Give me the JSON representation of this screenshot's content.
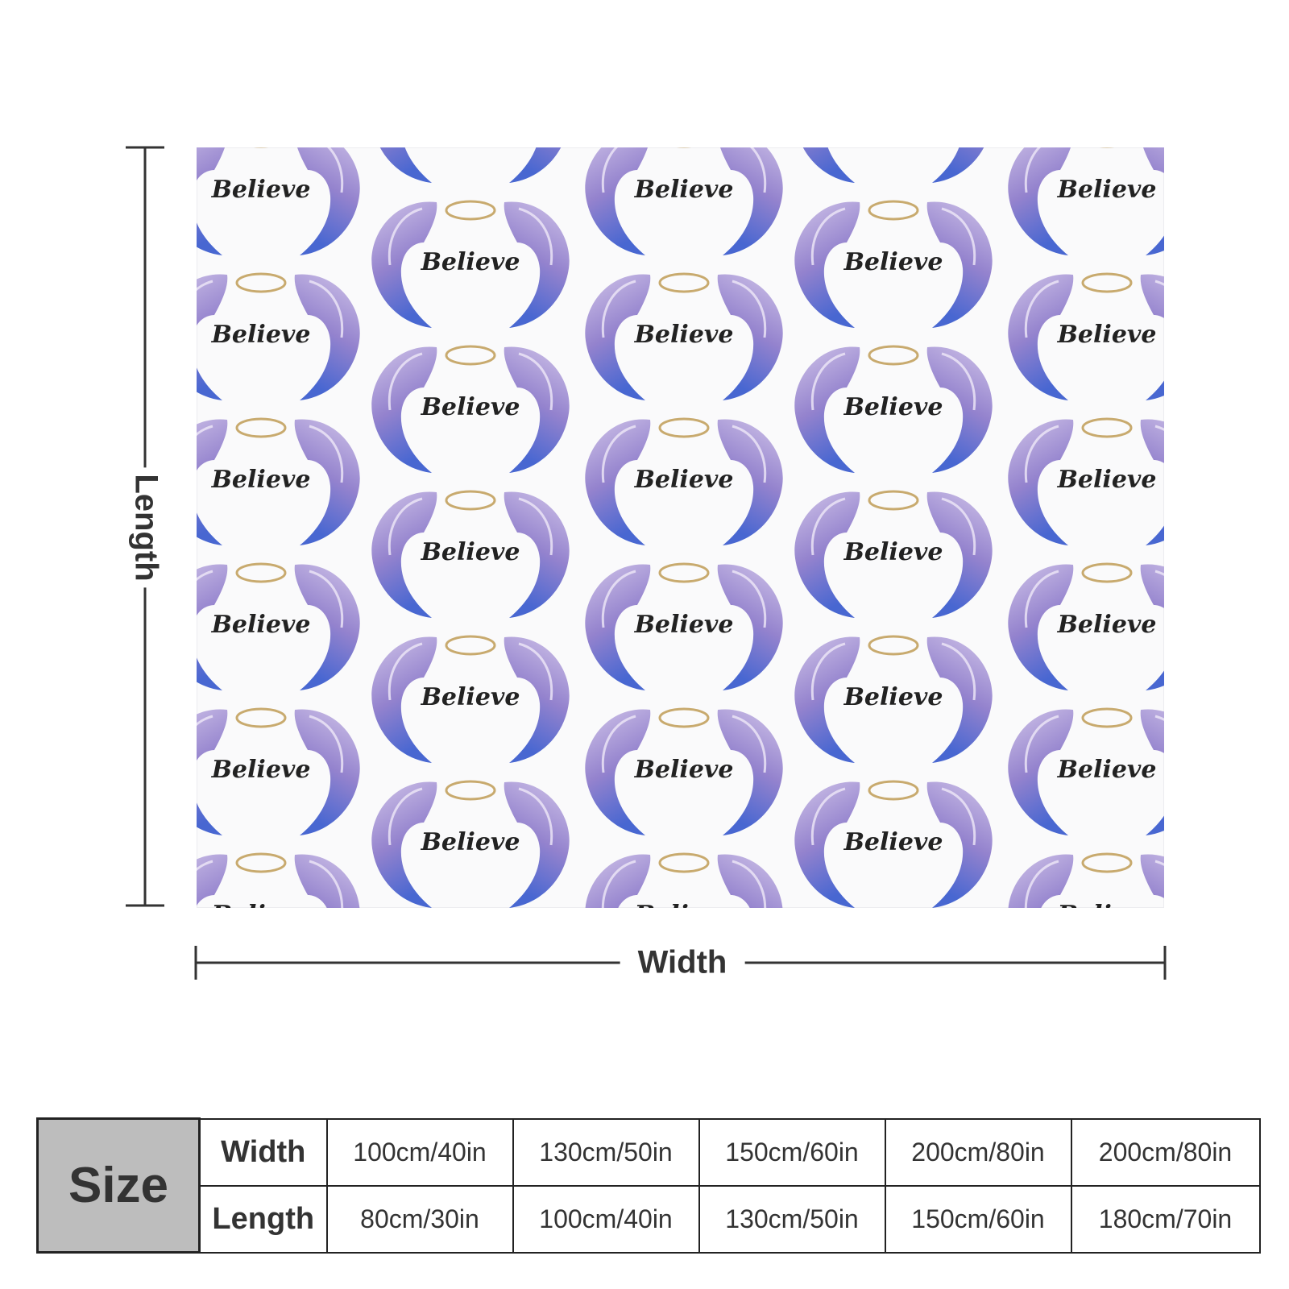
{
  "product": {
    "pattern_text": "Believe",
    "pattern_colors": {
      "wing_light": "#c9b8e3",
      "wing_mid": "#8b78c9",
      "wing_dark": "#4a62c9",
      "halo": "#c8aa6e",
      "text": "#222222"
    }
  },
  "dimensions": {
    "length_label": "Length",
    "width_label": "Width"
  },
  "size_table": {
    "size_label": "Size",
    "width_header": "Width",
    "length_header": "Length",
    "widths": [
      "100cm/40in",
      "130cm/50in",
      "150cm/60in",
      "200cm/80in",
      "200cm/80in"
    ],
    "lengths": [
      "80cm/30in",
      "100cm/40in",
      "130cm/50in",
      "150cm/60in",
      "180cm/70in"
    ]
  }
}
